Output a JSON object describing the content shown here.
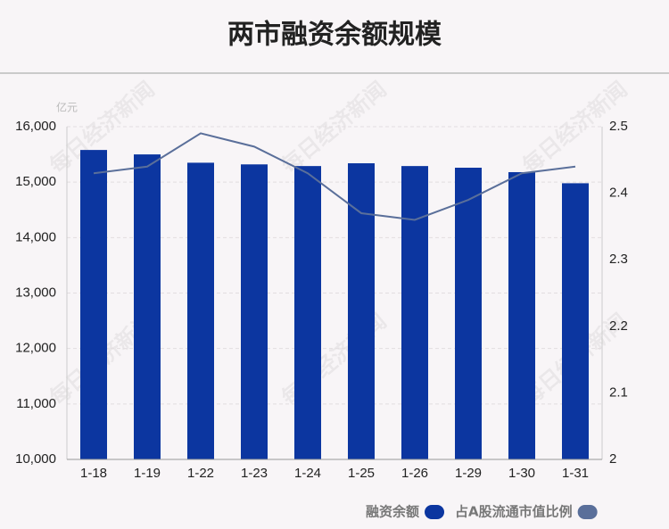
{
  "chart_data": {
    "type": "bar",
    "title": "两市融资余额规模",
    "y_unit": "亿元",
    "watermark": "每日经济新闻",
    "categories": [
      "1-18",
      "1-19",
      "1-22",
      "1-23",
      "1-24",
      "1-25",
      "1-26",
      "1-29",
      "1-30",
      "1-31"
    ],
    "series": [
      {
        "name": "融资余额",
        "type": "bar",
        "color": "#0c36a0",
        "axis": "y",
        "values": [
          15580,
          15500,
          15350,
          15320,
          15290,
          15340,
          15290,
          15260,
          15180,
          14980
        ]
      },
      {
        "name": "占A股流通市值比例",
        "type": "line",
        "color": "#5a6f9a",
        "axis": "y2",
        "values": [
          2.43,
          2.44,
          2.49,
          2.47,
          2.43,
          2.37,
          2.36,
          2.39,
          2.43,
          2.44
        ]
      }
    ],
    "ylim": [
      10000,
      16000
    ],
    "yticks": [
      {
        "value": 10000,
        "label": "10,000"
      },
      {
        "value": 11000,
        "label": "11,000"
      },
      {
        "value": 12000,
        "label": "12,000"
      },
      {
        "value": 13000,
        "label": "13,000"
      },
      {
        "value": 14000,
        "label": "14,000"
      },
      {
        "value": 15000,
        "label": "15,000"
      },
      {
        "value": 16000,
        "label": "16,000"
      }
    ],
    "y2lim": [
      2,
      2.5
    ],
    "y2ticks": [
      2,
      2.1,
      2.2,
      2.3,
      2.4,
      2.5
    ],
    "grid": true
  }
}
